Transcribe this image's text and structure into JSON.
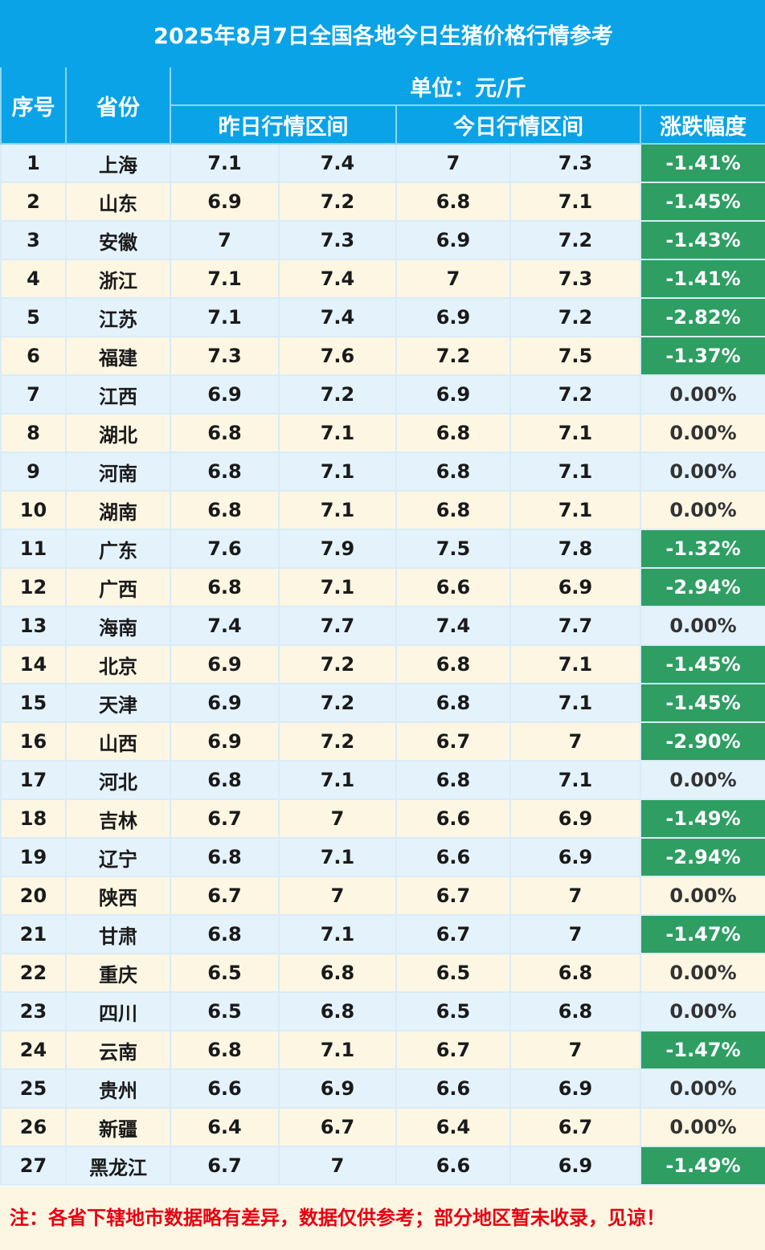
{
  "title": "2025年8月7日全国各地今日生猪价格行情参考",
  "headers": {
    "index": "序号",
    "province": "省份",
    "unit": "单位：元/斤",
    "yesterday": "昨日行情区间",
    "today": "今日行情区间",
    "change": "涨跌幅度"
  },
  "colors": {
    "header_blue": "#0aa3e8",
    "row_blue": "#e4f2fc",
    "row_cream": "#fdf6e3",
    "drop_green": "#2e9e63",
    "note_red": "#e60012"
  },
  "rows": [
    {
      "no": "1",
      "province": "上海",
      "y_low": "7.1",
      "y_high": "7.4",
      "t_low": "7",
      "t_high": "7.3",
      "change": "-1.41%"
    },
    {
      "no": "2",
      "province": "山东",
      "y_low": "6.9",
      "y_high": "7.2",
      "t_low": "6.8",
      "t_high": "7.1",
      "change": "-1.45%"
    },
    {
      "no": "3",
      "province": "安徽",
      "y_low": "7",
      "y_high": "7.3",
      "t_low": "6.9",
      "t_high": "7.2",
      "change": "-1.43%"
    },
    {
      "no": "4",
      "province": "浙江",
      "y_low": "7.1",
      "y_high": "7.4",
      "t_low": "7",
      "t_high": "7.3",
      "change": "-1.41%"
    },
    {
      "no": "5",
      "province": "江苏",
      "y_low": "7.1",
      "y_high": "7.4",
      "t_low": "6.9",
      "t_high": "7.2",
      "change": "-2.82%"
    },
    {
      "no": "6",
      "province": "福建",
      "y_low": "7.3",
      "y_high": "7.6",
      "t_low": "7.2",
      "t_high": "7.5",
      "change": "-1.37%"
    },
    {
      "no": "7",
      "province": "江西",
      "y_low": "6.9",
      "y_high": "7.2",
      "t_low": "6.9",
      "t_high": "7.2",
      "change": "0.00%"
    },
    {
      "no": "8",
      "province": "湖北",
      "y_low": "6.8",
      "y_high": "7.1",
      "t_low": "6.8",
      "t_high": "7.1",
      "change": "0.00%"
    },
    {
      "no": "9",
      "province": "河南",
      "y_low": "6.8",
      "y_high": "7.1",
      "t_low": "6.8",
      "t_high": "7.1",
      "change": "0.00%"
    },
    {
      "no": "10",
      "province": "湖南",
      "y_low": "6.8",
      "y_high": "7.1",
      "t_low": "6.8",
      "t_high": "7.1",
      "change": "0.00%"
    },
    {
      "no": "11",
      "province": "广东",
      "y_low": "7.6",
      "y_high": "7.9",
      "t_low": "7.5",
      "t_high": "7.8",
      "change": "-1.32%"
    },
    {
      "no": "12",
      "province": "广西",
      "y_low": "6.8",
      "y_high": "7.1",
      "t_low": "6.6",
      "t_high": "6.9",
      "change": "-2.94%"
    },
    {
      "no": "13",
      "province": "海南",
      "y_low": "7.4",
      "y_high": "7.7",
      "t_low": "7.4",
      "t_high": "7.7",
      "change": "0.00%"
    },
    {
      "no": "14",
      "province": "北京",
      "y_low": "6.9",
      "y_high": "7.2",
      "t_low": "6.8",
      "t_high": "7.1",
      "change": "-1.45%"
    },
    {
      "no": "15",
      "province": "天津",
      "y_low": "6.9",
      "y_high": "7.2",
      "t_low": "6.8",
      "t_high": "7.1",
      "change": "-1.45%"
    },
    {
      "no": "16",
      "province": "山西",
      "y_low": "6.9",
      "y_high": "7.2",
      "t_low": "6.7",
      "t_high": "7",
      "change": "-2.90%"
    },
    {
      "no": "17",
      "province": "河北",
      "y_low": "6.8",
      "y_high": "7.1",
      "t_low": "6.8",
      "t_high": "7.1",
      "change": "0.00%"
    },
    {
      "no": "18",
      "province": "吉林",
      "y_low": "6.7",
      "y_high": "7",
      "t_low": "6.6",
      "t_high": "6.9",
      "change": "-1.49%"
    },
    {
      "no": "19",
      "province": "辽宁",
      "y_low": "6.8",
      "y_high": "7.1",
      "t_low": "6.6",
      "t_high": "6.9",
      "change": "-2.94%"
    },
    {
      "no": "20",
      "province": "陕西",
      "y_low": "6.7",
      "y_high": "7",
      "t_low": "6.7",
      "t_high": "7",
      "change": "0.00%"
    },
    {
      "no": "21",
      "province": "甘肃",
      "y_low": "6.8",
      "y_high": "7.1",
      "t_low": "6.7",
      "t_high": "7",
      "change": "-1.47%"
    },
    {
      "no": "22",
      "province": "重庆",
      "y_low": "6.5",
      "y_high": "6.8",
      "t_low": "6.5",
      "t_high": "6.8",
      "change": "0.00%"
    },
    {
      "no": "23",
      "province": "四川",
      "y_low": "6.5",
      "y_high": "6.8",
      "t_low": "6.5",
      "t_high": "6.8",
      "change": "0.00%"
    },
    {
      "no": "24",
      "province": "云南",
      "y_low": "6.8",
      "y_high": "7.1",
      "t_low": "6.7",
      "t_high": "7",
      "change": "-1.47%"
    },
    {
      "no": "25",
      "province": "贵州",
      "y_low": "6.6",
      "y_high": "6.9",
      "t_low": "6.6",
      "t_high": "6.9",
      "change": "0.00%"
    },
    {
      "no": "26",
      "province": "新疆",
      "y_low": "6.4",
      "y_high": "6.7",
      "t_low": "6.4",
      "t_high": "6.7",
      "change": "0.00%"
    },
    {
      "no": "27",
      "province": "黑龙江",
      "y_low": "6.7",
      "y_high": "7",
      "t_low": "6.6",
      "t_high": "6.9",
      "change": "-1.49%"
    }
  ],
  "note": "注：各省下辖地市数据略有差异，数据仅供参考；部分地区暂未收录，见谅！"
}
